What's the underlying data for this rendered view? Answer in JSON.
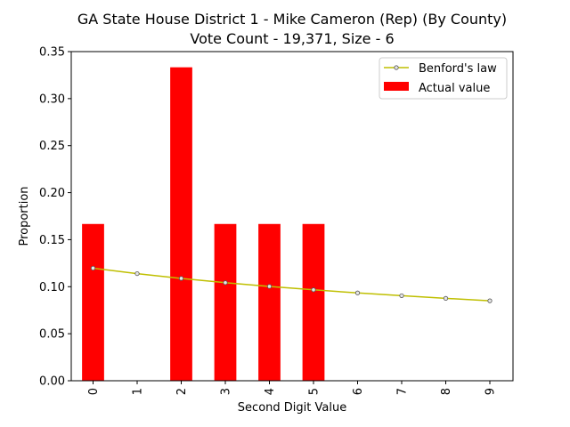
{
  "chart_data": {
    "type": "bar",
    "title": "GA State House District 1 - Mike Cameron (Rep) (By County)",
    "subtitle": "Vote Count - 19,371, Size - 6",
    "xlabel": "Second Digit Value",
    "ylabel": "Proportion",
    "categories": [
      "0",
      "1",
      "2",
      "3",
      "4",
      "5",
      "6",
      "7",
      "8",
      "9"
    ],
    "ylim": [
      0,
      0.35
    ],
    "yticks": [
      "0.00",
      "0.05",
      "0.10",
      "0.15",
      "0.20",
      "0.25",
      "0.30",
      "0.35"
    ],
    "grid": false,
    "legend_position": "top-right",
    "series": [
      {
        "name": "Actual value",
        "kind": "bar",
        "color": "#ff0000",
        "values": [
          0.1667,
          0,
          0.3333,
          0.1667,
          0.1667,
          0.1667,
          0,
          0,
          0,
          0
        ]
      },
      {
        "name": "Benford's law",
        "kind": "line",
        "color": "#bfbf00",
        "values": [
          0.1197,
          0.1139,
          0.1088,
          0.1043,
          0.1003,
          0.0967,
          0.0934,
          0.0904,
          0.0876,
          0.085
        ]
      }
    ]
  }
}
